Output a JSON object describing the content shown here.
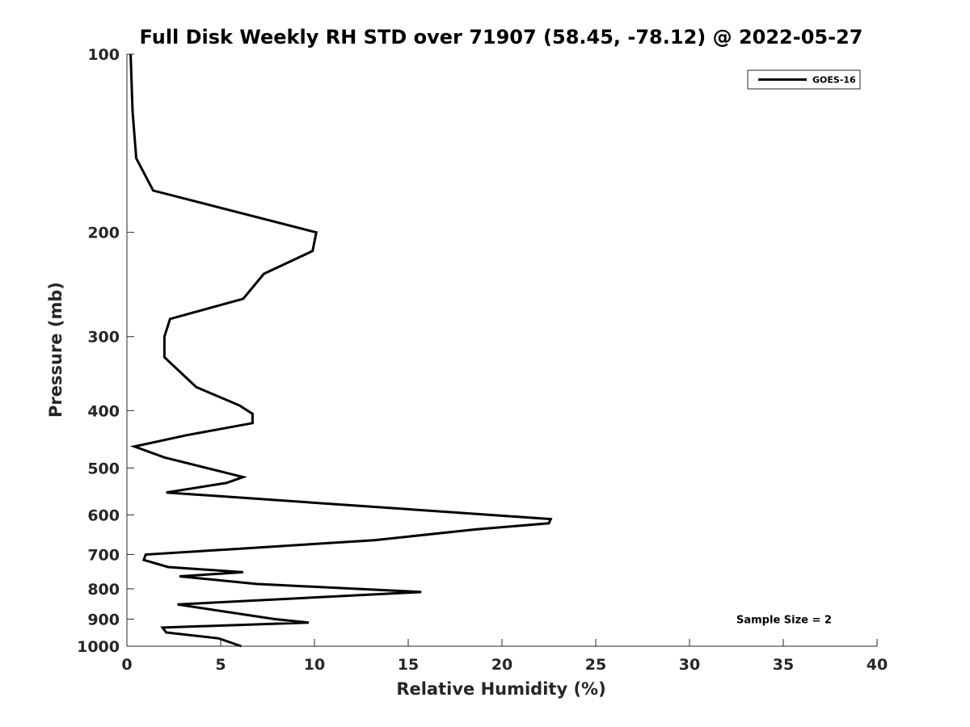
{
  "chart_data": {
    "type": "line",
    "title": "Full Disk Weekly RH STD over 71907 (58.45, -78.12) @ 2022-05-27",
    "xlabel": "Relative Humidity (%)",
    "ylabel": "Pressure (mb)",
    "xlim": [
      0,
      40
    ],
    "ylim": [
      100,
      1000
    ],
    "y_scale": "log",
    "y_reversed": true,
    "grid": false,
    "legend_position": "top-right",
    "x_ticks": [
      "0",
      "5",
      "10",
      "15",
      "20",
      "25",
      "30",
      "35",
      "40"
    ],
    "x_tick_values": [
      0,
      5,
      10,
      15,
      20,
      25,
      30,
      35,
      40
    ],
    "y_ticks": [
      "100",
      "200",
      "300",
      "400",
      "500",
      "600",
      "700",
      "800",
      "900",
      "1000"
    ],
    "y_tick_values": [
      100,
      200,
      300,
      400,
      500,
      600,
      700,
      800,
      900,
      1000
    ],
    "series": [
      {
        "name": "GOES-16",
        "color": "#000000",
        "points": [
          {
            "x": 0.2,
            "y": 100
          },
          {
            "x": 0.3,
            "y": 125
          },
          {
            "x": 0.5,
            "y": 150
          },
          {
            "x": 1.4,
            "y": 170
          },
          {
            "x": 10.1,
            "y": 200
          },
          {
            "x": 9.9,
            "y": 215
          },
          {
            "x": 7.3,
            "y": 235
          },
          {
            "x": 6.2,
            "y": 259
          },
          {
            "x": 2.3,
            "y": 280
          },
          {
            "x": 2.0,
            "y": 300
          },
          {
            "x": 2.0,
            "y": 325
          },
          {
            "x": 3.7,
            "y": 365
          },
          {
            "x": 6.0,
            "y": 392
          },
          {
            "x": 6.7,
            "y": 405
          },
          {
            "x": 6.7,
            "y": 420
          },
          {
            "x": 3.2,
            "y": 440
          },
          {
            "x": 0.4,
            "y": 460
          },
          {
            "x": 2.0,
            "y": 480
          },
          {
            "x": 6.2,
            "y": 518
          },
          {
            "x": 5.3,
            "y": 530
          },
          {
            "x": 2.1,
            "y": 550
          },
          {
            "x": 22.6,
            "y": 610
          },
          {
            "x": 22.5,
            "y": 620
          },
          {
            "x": 18.6,
            "y": 635
          },
          {
            "x": 13.2,
            "y": 662
          },
          {
            "x": 5.8,
            "y": 685
          },
          {
            "x": 1.0,
            "y": 700
          },
          {
            "x": 0.9,
            "y": 715
          },
          {
            "x": 2.2,
            "y": 735
          },
          {
            "x": 6.2,
            "y": 750
          },
          {
            "x": 2.8,
            "y": 762
          },
          {
            "x": 6.9,
            "y": 785
          },
          {
            "x": 15.7,
            "y": 810
          },
          {
            "x": 2.7,
            "y": 850
          },
          {
            "x": 7.9,
            "y": 900
          },
          {
            "x": 9.7,
            "y": 912
          },
          {
            "x": 1.9,
            "y": 930
          },
          {
            "x": 2.1,
            "y": 948
          },
          {
            "x": 4.9,
            "y": 970
          },
          {
            "x": 6.1,
            "y": 1000
          }
        ]
      }
    ],
    "annotations": [
      {
        "text": "Sample Size = 2",
        "x": 32.5,
        "y": 900
      }
    ]
  }
}
